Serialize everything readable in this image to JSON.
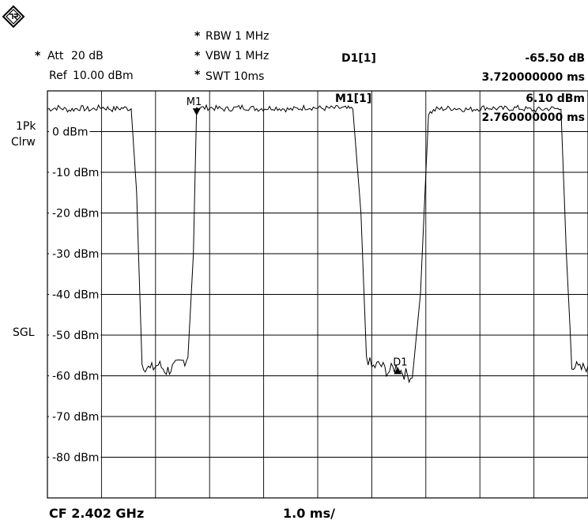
{
  "header": {
    "att_label": "Att",
    "att_value": "20 dB",
    "ref_label": "Ref",
    "ref_value": "10.00 dBm",
    "rbw": "RBW 1 MHz",
    "vbw": "VBW 1 MHz",
    "swt": "SWT 10ms",
    "star": "*"
  },
  "markers": {
    "d1_label": "D1[1]",
    "d1_value": "-65.50 dB",
    "d1_time": "3.720000000 ms",
    "m1_label": "M1[1]",
    "m1_value": "6.10 dBm",
    "m1_time": "2.760000000 ms",
    "m1_tag": "M1",
    "d1_tag": "D1"
  },
  "side": {
    "trace_mode_1": "1Pk",
    "trace_mode_2": "Clrw",
    "sweep_mode": "SGL"
  },
  "footer": {
    "center_freq": "CF 2.402 GHz",
    "time_div": "1.0 ms/"
  },
  "colors": {
    "trace": "#000000",
    "grid": "#000000",
    "background": "#ffffff"
  },
  "chart_data": {
    "type": "line",
    "x_unit": "ms",
    "y_unit": "dBm",
    "xlim": [
      0,
      10
    ],
    "ylim": [
      -90,
      10
    ],
    "ytick_labels": [
      "0 dBm",
      "-10 dBm",
      "-20 dBm",
      "-30 dBm",
      "-40 dBm",
      "-50 dBm",
      "-60 dBm",
      "-70 dBm",
      "-80 dBm"
    ],
    "ytick_values": [
      0,
      -10,
      -20,
      -30,
      -40,
      -50,
      -60,
      -70,
      -80
    ],
    "grid": true,
    "series": [
      {
        "x": [
          0,
          0.2,
          0.4,
          0.6,
          0.8,
          1.0,
          1.2,
          1.4,
          1.55,
          1.65,
          1.75,
          1.9,
          2.05,
          2.2,
          2.4,
          2.6,
          2.7,
          2.76,
          2.85,
          3.0,
          3.3,
          3.6,
          3.9,
          4.2,
          4.5,
          4.8,
          5.1,
          5.4,
          5.65,
          5.8,
          5.9,
          6.0,
          6.15,
          6.3,
          6.45,
          6.6,
          6.75,
          6.9,
          7.05,
          7.2,
          7.5,
          7.8,
          8.1,
          8.4,
          8.7,
          9.0,
          9.3,
          9.5,
          9.6,
          9.7,
          9.85,
          10.0
        ],
        "y": [
          5.5,
          5.9,
          5.3,
          5.8,
          5.4,
          6.0,
          5.5,
          5.8,
          5.6,
          -15.0,
          -57.0,
          -58.5,
          -57.2,
          -58.8,
          -57.5,
          -55.5,
          -30.0,
          6.1,
          5.8,
          5.9,
          5.5,
          6.0,
          5.6,
          5.9,
          5.4,
          6.0,
          5.7,
          5.8,
          5.5,
          -20.0,
          -55.0,
          -58.0,
          -57.2,
          -59.0,
          -57.8,
          -59.4,
          -60.5,
          -40.0,
          4.5,
          5.5,
          5.8,
          5.4,
          5.9,
          5.6,
          5.8,
          5.3,
          5.7,
          5.5,
          -30.0,
          -57.0,
          -58.5,
          -57.5
        ]
      }
    ],
    "markers": [
      {
        "name": "M1",
        "x": 2.76,
        "y": 6.1
      },
      {
        "name": "D1",
        "x": 6.48,
        "y": -59.4
      }
    ]
  }
}
